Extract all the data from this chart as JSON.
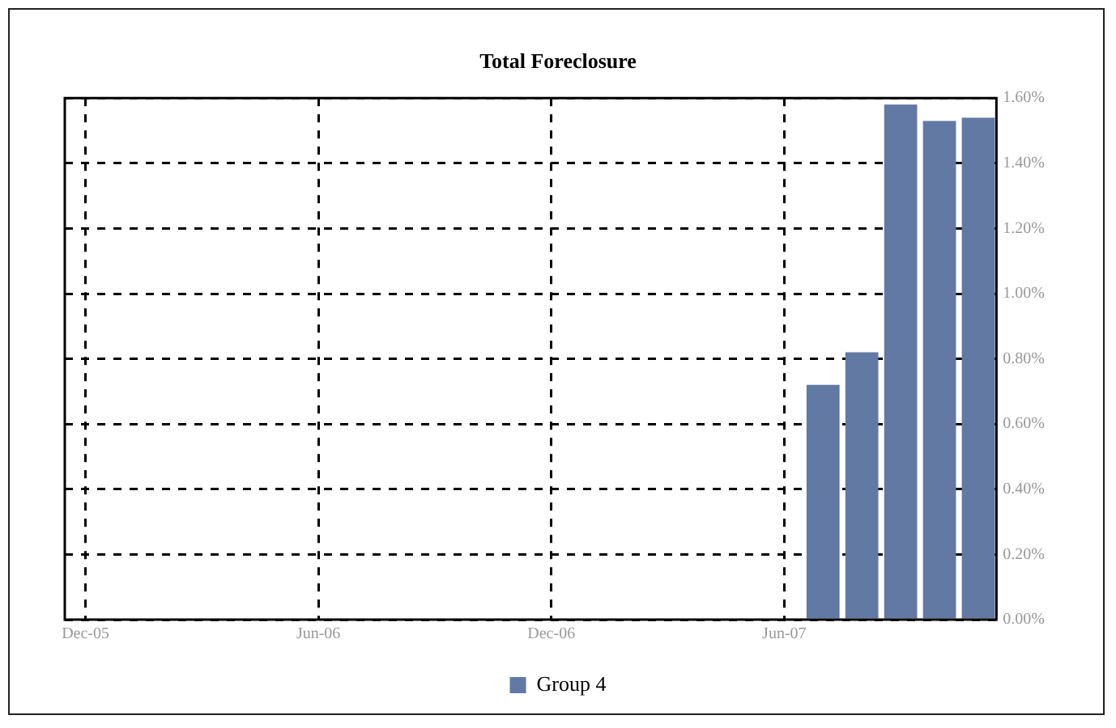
{
  "chart_data": {
    "type": "bar",
    "title": "Total Foreclosure",
    "x": [
      "2007-07",
      "2007-08",
      "2007-09",
      "2007-10",
      "2007-11"
    ],
    "series": [
      {
        "name": "Group 4",
        "color": "#6279a4",
        "values": [
          0.72,
          0.82,
          1.58,
          1.53,
          1.54
        ]
      }
    ],
    "xlim": [
      "2005-11-15",
      "2007-11-15"
    ],
    "xticks": [
      {
        "value": "2005-12",
        "label": "Dec-05"
      },
      {
        "value": "2006-06",
        "label": "Jun-06"
      },
      {
        "value": "2006-12",
        "label": "Dec-06"
      },
      {
        "value": "2007-06",
        "label": "Jun-07"
      }
    ],
    "ylim": [
      0,
      1.6
    ],
    "yticks": [
      {
        "value": 0,
        "label": "0.00%"
      },
      {
        "value": 0.2,
        "label": "0.20%"
      },
      {
        "value": 0.4,
        "label": "0.40%"
      },
      {
        "value": 0.6,
        "label": "0.60%"
      },
      {
        "value": 0.8,
        "label": "0.80%"
      },
      {
        "value": 1.0,
        "label": "1.00%"
      },
      {
        "value": 1.2,
        "label": "1.20%"
      },
      {
        "value": 1.4,
        "label": "1.40%"
      },
      {
        "value": 1.6,
        "label": "1.60%"
      }
    ],
    "grid": true,
    "legend": "bottom"
  }
}
